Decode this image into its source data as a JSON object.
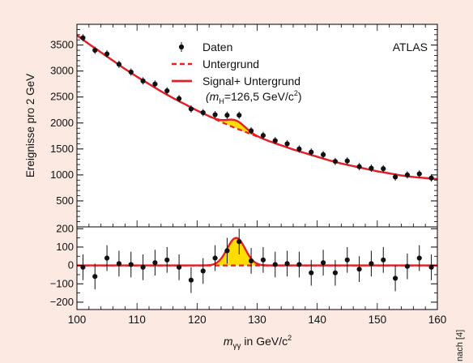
{
  "credit": "nach [4]",
  "colors": {
    "background": "#fbe9e2",
    "plot_background": "#ffffff",
    "fit_line": "#e41e26",
    "signal_fill": "#ffdd00",
    "points": "#111111"
  },
  "chart_data": [
    {
      "type": "scatter",
      "panel": "top",
      "xlabel": "",
      "ylabel": "Ereignisse pro 2 GeV",
      "xlim": [
        100,
        160
      ],
      "ylim": [
        0,
        3900
      ],
      "yticks": [
        500,
        1000,
        1500,
        2000,
        2500,
        3000,
        3500
      ],
      "annotation": "ATLAS",
      "legend_position": "top-center",
      "legend": [
        {
          "label": "Daten",
          "style": "points"
        },
        {
          "label": "Untergrund",
          "style": "dashed-line"
        },
        {
          "label": "Signal+ Untergrund",
          "style": "solid-line",
          "sublabel_pre": "(m",
          "sublabel_sub": "H",
          "sublabel_post": "=126,5 GeV/c",
          "sublabel_sup": "2",
          "sublabel_end": ")"
        }
      ],
      "series": [
        {
          "name": "Daten",
          "x": [
            101,
            103,
            105,
            107,
            109,
            111,
            113,
            115,
            117,
            119,
            121,
            123,
            125,
            127,
            129,
            131,
            133,
            135,
            137,
            139,
            141,
            143,
            145,
            147,
            149,
            151,
            153,
            155,
            157,
            159
          ],
          "y": [
            3640,
            3400,
            3330,
            3130,
            2980,
            2810,
            2750,
            2620,
            2470,
            2270,
            2200,
            2160,
            2150,
            2150,
            1850,
            1760,
            1660,
            1600,
            1500,
            1440,
            1390,
            1260,
            1270,
            1160,
            1130,
            1120,
            960,
            1000,
            1020,
            940
          ],
          "yerr": 70
        }
      ],
      "background_model": {
        "name": "Untergrund",
        "x": [
          100,
          102,
          104,
          106,
          108,
          110,
          112,
          114,
          116,
          118,
          120,
          122,
          124,
          126,
          128,
          130,
          132,
          134,
          136,
          138,
          140,
          142,
          144,
          146,
          148,
          150,
          152,
          154,
          156,
          158,
          160
        ],
        "y": [
          3690,
          3520,
          3360,
          3200,
          3040,
          2890,
          2750,
          2610,
          2480,
          2360,
          2240,
          2130,
          2020,
          1920,
          1830,
          1740,
          1650,
          1570,
          1490,
          1420,
          1350,
          1280,
          1220,
          1170,
          1120,
          1070,
          1030,
          990,
          960,
          940,
          920
        ]
      },
      "signal": {
        "mass": 126.5,
        "amplitude": 150,
        "sigma": 1.5
      }
    },
    {
      "type": "scatter",
      "panel": "bottom",
      "xlabel_pre": "m",
      "xlabel_sub": "γγ",
      "xlabel_post": " in GeV/c",
      "xlabel_sup": "2",
      "ylabel": "",
      "xlim": [
        100,
        160
      ],
      "xticks": [
        100,
        110,
        120,
        130,
        140,
        150,
        160
      ],
      "ylim": [
        -240,
        210
      ],
      "yticks": [
        -200,
        -100,
        0,
        100,
        200
      ],
      "series": [
        {
          "name": "Daten",
          "x": [
            101,
            103,
            105,
            107,
            109,
            111,
            113,
            115,
            117,
            119,
            121,
            123,
            125,
            127,
            129,
            131,
            133,
            135,
            137,
            139,
            141,
            143,
            145,
            147,
            149,
            151,
            153,
            155,
            157,
            159
          ],
          "y": [
            -10,
            -60,
            40,
            10,
            5,
            -10,
            15,
            30,
            -10,
            -80,
            -30,
            40,
            80,
            130,
            25,
            30,
            5,
            10,
            5,
            -40,
            15,
            -40,
            30,
            -20,
            10,
            30,
            -70,
            -5,
            40,
            -10
          ],
          "yerr": 70
        }
      ]
    }
  ]
}
